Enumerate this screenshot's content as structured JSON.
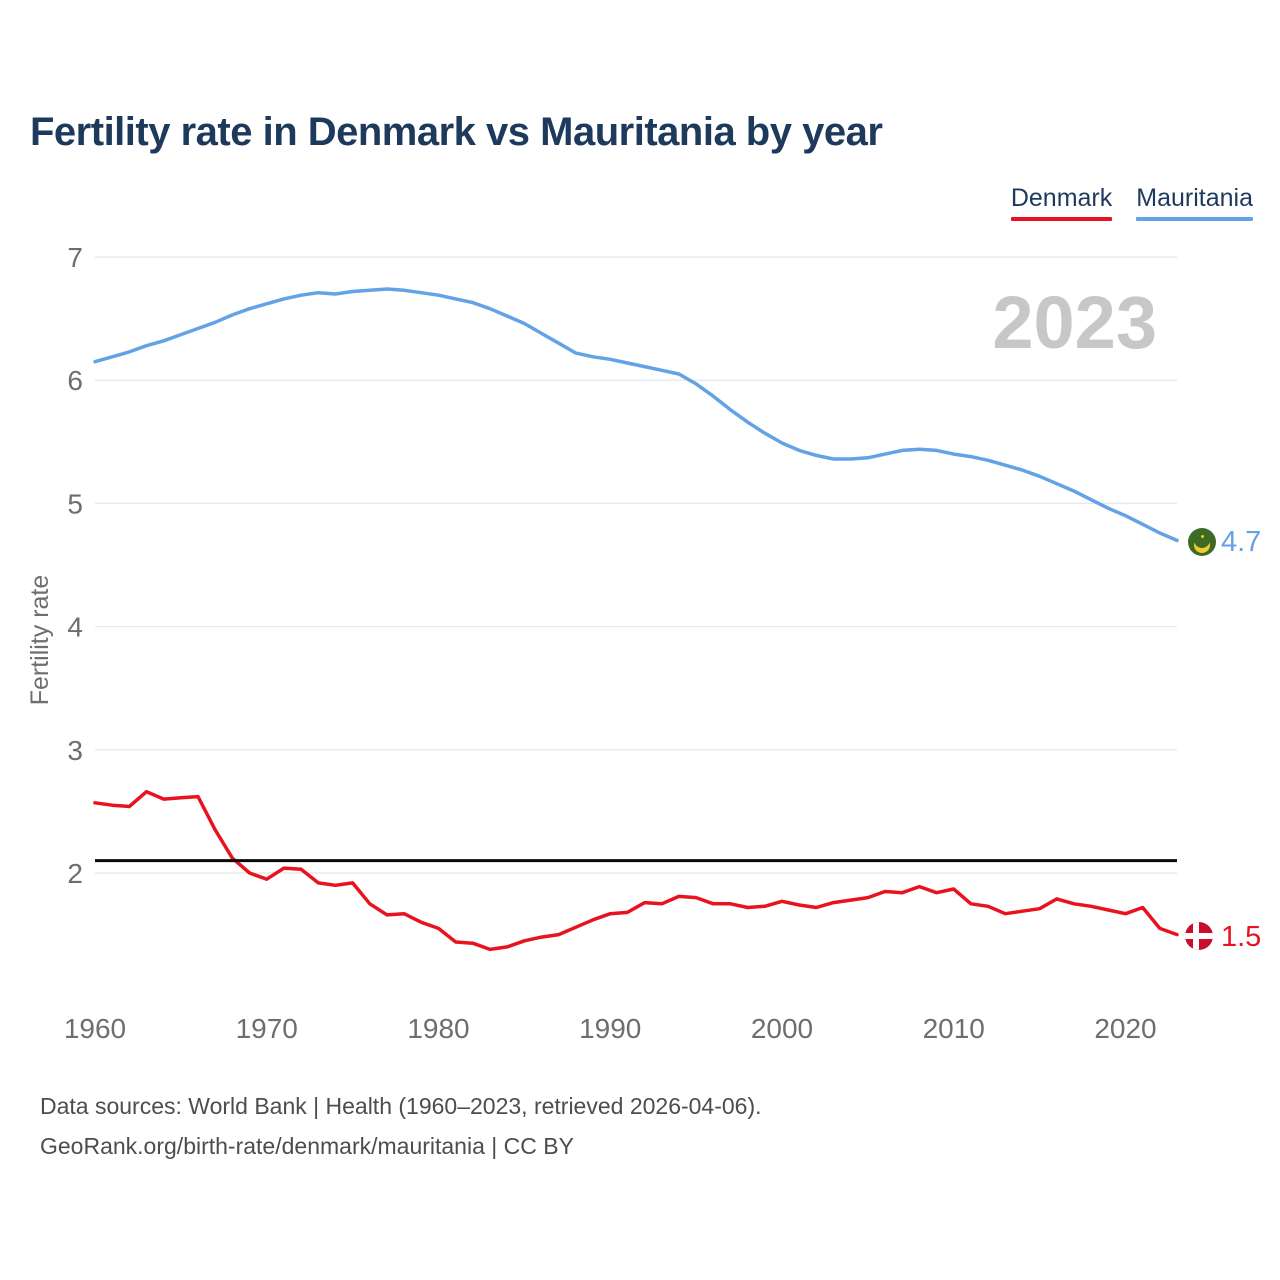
{
  "title": "Fertility rate in Denmark vs Mauritania by year",
  "legend": {
    "items": [
      {
        "label": "Denmark",
        "color": "#e8131f"
      },
      {
        "label": "Mauritania",
        "color": "#64a2e6"
      }
    ]
  },
  "watermark": "2023",
  "end_labels": {
    "mauritania": "4.7",
    "denmark": "1.5"
  },
  "footer": {
    "line1": "Data sources: World Bank | Health (1960–2023, retrieved 2026-04-06).",
    "line2": "GeoRank.org/birth-rate/denmark/mauritania | CC BY"
  },
  "colors": {
    "denmark": "#e8131f",
    "mauritania": "#64a2e6",
    "title_text": "#1d3a5c",
    "axis_text": "#6e6e6e",
    "gridline": "#e8e8e8",
    "watermark": "#c7c7c7",
    "reference_line": "#0a0a0a",
    "footer_text": "#4d4d4d",
    "denmark_flag_red": "#c8102e",
    "denmark_flag_cross": "#ffffff",
    "mauritania_flag_green": "#3e6b23",
    "mauritania_flag_gold": "#f2ca2e"
  },
  "chart_data": {
    "type": "line",
    "title": "Fertility rate in Denmark vs Mauritania by year",
    "xlabel": "",
    "ylabel": "Fertility rate",
    "xlim": [
      1960,
      2023
    ],
    "ylim": [
      1.3,
      7.15
    ],
    "x_ticks": [
      1960,
      1970,
      1980,
      1990,
      2000,
      2010,
      2020
    ],
    "y_ticks": [
      2,
      3,
      4,
      5,
      6,
      7
    ],
    "grid": "horizontal",
    "legend_position": "top-right",
    "reference_line": {
      "y": 2.1
    },
    "watermark": "2023",
    "x": [
      1960,
      1961,
      1962,
      1963,
      1964,
      1965,
      1966,
      1967,
      1968,
      1969,
      1970,
      1971,
      1972,
      1973,
      1974,
      1975,
      1976,
      1977,
      1978,
      1979,
      1980,
      1981,
      1982,
      1983,
      1984,
      1985,
      1986,
      1987,
      1988,
      1989,
      1990,
      1991,
      1992,
      1993,
      1994,
      1995,
      1996,
      1997,
      1998,
      1999,
      2000,
      2001,
      2002,
      2003,
      2004,
      2005,
      2006,
      2007,
      2008,
      2009,
      2010,
      2011,
      2012,
      2013,
      2014,
      2015,
      2016,
      2017,
      2018,
      2019,
      2020,
      2021,
      2022,
      2023
    ],
    "series": [
      {
        "name": "Denmark",
        "color": "#e8131f",
        "end_label": "1.5",
        "values": [
          2.57,
          2.55,
          2.54,
          2.66,
          2.6,
          2.61,
          2.62,
          2.35,
          2.12,
          2.0,
          1.95,
          2.04,
          2.03,
          1.92,
          1.9,
          1.92,
          1.75,
          1.66,
          1.67,
          1.6,
          1.55,
          1.44,
          1.43,
          1.38,
          1.4,
          1.45,
          1.48,
          1.5,
          1.56,
          1.62,
          1.67,
          1.68,
          1.76,
          1.75,
          1.81,
          1.8,
          1.75,
          1.75,
          1.72,
          1.73,
          1.77,
          1.74,
          1.72,
          1.76,
          1.78,
          1.8,
          1.85,
          1.84,
          1.89,
          1.84,
          1.87,
          1.75,
          1.73,
          1.67,
          1.69,
          1.71,
          1.79,
          1.75,
          1.73,
          1.7,
          1.67,
          1.72,
          1.55,
          1.5
        ]
      },
      {
        "name": "Mauritania",
        "color": "#64a2e6",
        "end_label": "4.7",
        "values": [
          6.15,
          6.19,
          6.23,
          6.28,
          6.32,
          6.37,
          6.42,
          6.47,
          6.53,
          6.58,
          6.62,
          6.66,
          6.69,
          6.71,
          6.7,
          6.72,
          6.73,
          6.74,
          6.73,
          6.71,
          6.69,
          6.66,
          6.63,
          6.58,
          6.52,
          6.46,
          6.38,
          6.3,
          6.22,
          6.19,
          6.17,
          6.14,
          6.11,
          6.08,
          6.05,
          5.97,
          5.87,
          5.76,
          5.66,
          5.57,
          5.49,
          5.43,
          5.39,
          5.36,
          5.36,
          5.37,
          5.4,
          5.43,
          5.44,
          5.43,
          5.4,
          5.38,
          5.35,
          5.31,
          5.27,
          5.22,
          5.16,
          5.1,
          5.03,
          4.96,
          4.9,
          4.83,
          4.76,
          4.7
        ]
      }
    ]
  }
}
